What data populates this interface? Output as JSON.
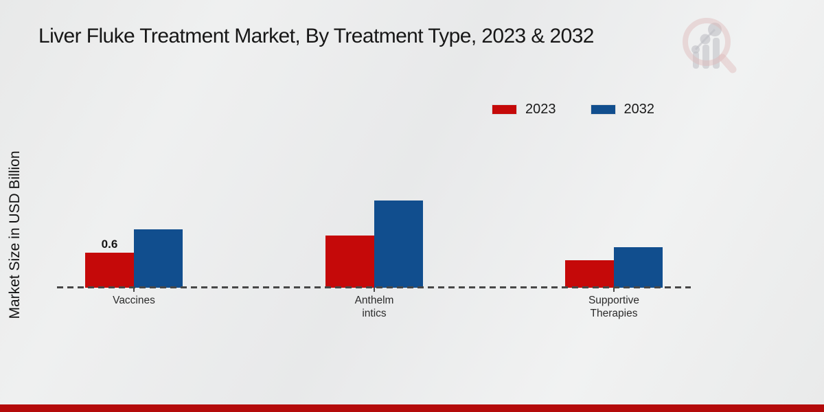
{
  "page": {
    "background_color": "#eaebeb",
    "footer_bar_color": "#b40a0a"
  },
  "watermark": {
    "icon": "magnifier-bar-chart-logo",
    "circle_color": "#d9a8a8",
    "bars_color": "#9a9aa4"
  },
  "chart_data": {
    "type": "bar",
    "title": "Liver Fluke Treatment Market, By Treatment Type, 2023 & 2032",
    "xlabel": "",
    "ylabel": "Market Size in USD Billion",
    "categories": [
      "Vaccines",
      "Anthelmintics",
      "Supportive Therapies"
    ],
    "tick_labels": [
      "Vaccines",
      "Anthelm\nintics",
      "Supportive\nTherapies"
    ],
    "series": [
      {
        "name": "2023",
        "color": "#c50909",
        "values": [
          0.6,
          0.9,
          0.47
        ]
      },
      {
        "name": "2032",
        "color": "#114e8e",
        "values": [
          1.0,
          1.5,
          0.7
        ]
      }
    ],
    "annotations": [
      {
        "series_index": 0,
        "category_index": 0,
        "text": "0.6"
      }
    ],
    "ylim": [
      0,
      1.6
    ],
    "grid": false,
    "y_axis_ticks_visible": false,
    "legend_position": "top-right",
    "baseline_style": "dashed"
  }
}
